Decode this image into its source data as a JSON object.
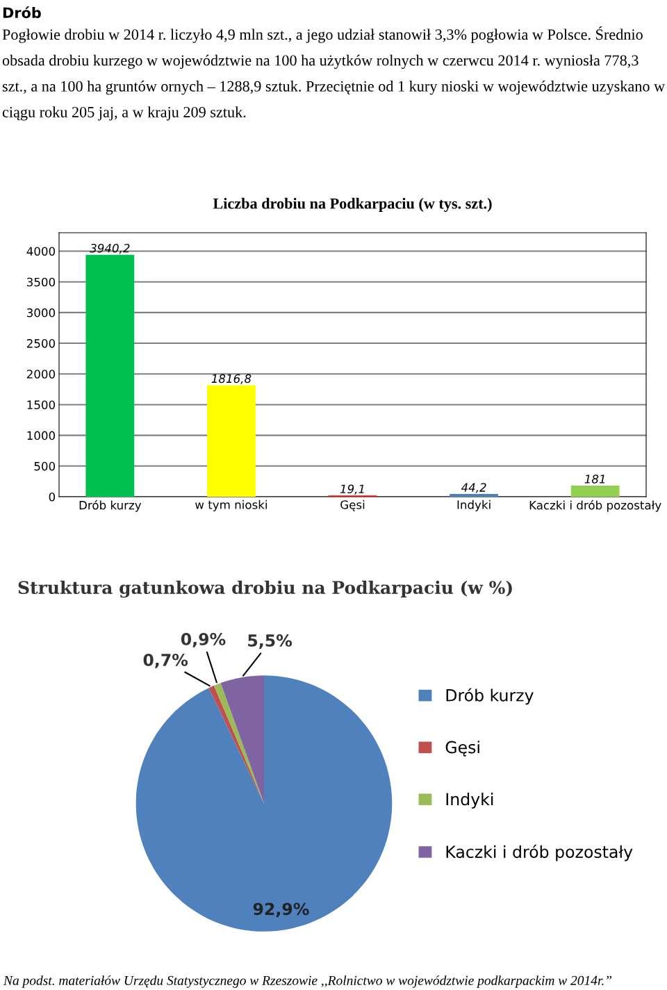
{
  "chart_data": [
    {
      "type": "bar",
      "title": "Liczba drobiu na Podkarpaciu (w tys. szt.)",
      "annotations": [
        "Drób",
        "Pogłowie drobiu w 2014 r. liczyło 4,9 mln szt., a jego udział stanowił 3,3% pogłowia w Polsce. Średnio obsada drobiu kurzego w województwie na 100 ha użytków rolnych w czerwcu 2014 r. wyniosła 778,3 szt., a na 100 ha gruntów ornych – 1288,9 sztuk. Przeciętnie od 1 kury nioski w województwie uzyskano w ciągu roku 205 jaj, a w kraju 209 sztuk."
      ],
      "categories": [
        "Drób kurzy",
        "w tym nioski",
        "Gęsi",
        "Indyki",
        "Kaczki i drób pozostały"
      ],
      "values": [
        3940.2,
        1816.8,
        19.1,
        44.2,
        181
      ],
      "value_labels": [
        "3940,2",
        "1816,8",
        "19,1",
        "44,2",
        "181"
      ],
      "colors": [
        "#00c050",
        "#ffff00",
        "#ff0000",
        "#4f81bd",
        "#92d050"
      ],
      "ylim": [
        0,
        4300
      ],
      "yticks": [
        0,
        500,
        1000,
        1500,
        2000,
        2500,
        3000,
        3500,
        4000
      ],
      "grid": "y"
    },
    {
      "type": "pie",
      "title": "Struktura gatunkowa drobiu na Podkarpaciu (w %)",
      "categories": [
        "Drób kurzy",
        "Gęsi",
        "Indyki",
        "Kaczki i drób pozostały"
      ],
      "values": [
        92.9,
        0.7,
        0.9,
        5.5
      ],
      "value_labels": [
        "92,9%",
        "0,7%",
        "0,9%",
        "5,5%"
      ],
      "colors": [
        "#4f81bd",
        "#c0504d",
        "#9bbb59",
        "#8064a2"
      ],
      "legend": "right",
      "annotations": [
        "Na podst. materiałów Urzędu Statystycznego w Rzeszowie ,,Rolnictwo w województwie podkarpackim w 2014r.”"
      ]
    }
  ]
}
